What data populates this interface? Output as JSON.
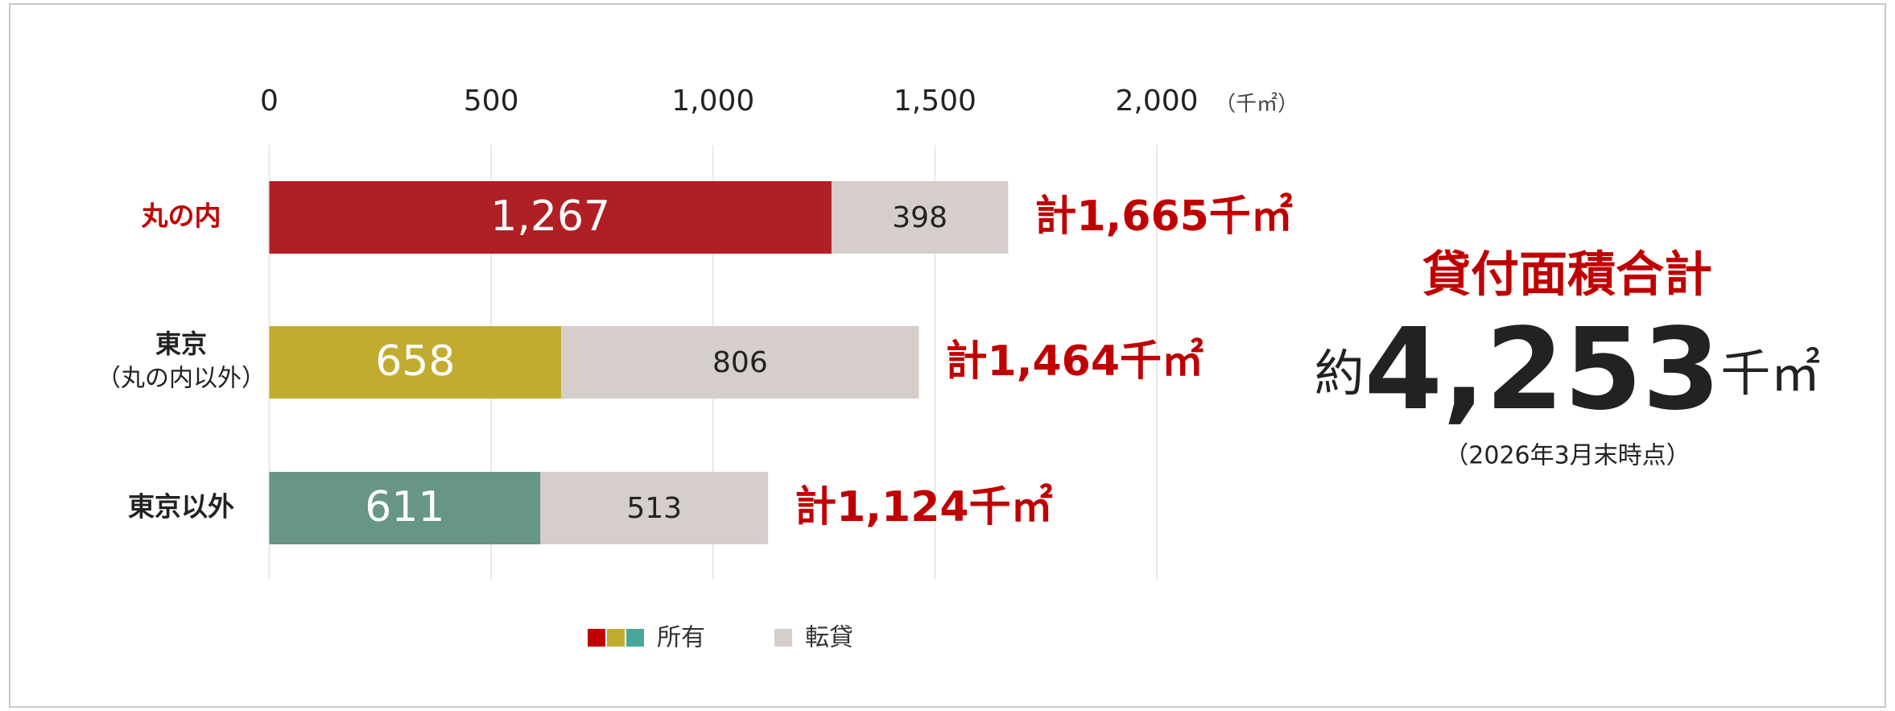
{
  "chart_data": {
    "type": "stacked-barh",
    "categories": [
      "丸の内",
      [
        "東京",
        "（丸の内以外）"
      ],
      "東京以外"
    ],
    "category_colors": [
      "#c00000",
      "#222222",
      "#222222"
    ],
    "series": [
      {
        "name": "所有",
        "colors": [
          "#b01f24",
          "#c2ac30",
          "#679586"
        ],
        "legend_colors": [
          "#c00000",
          "#c2ac30",
          "#4aa69a"
        ],
        "values": [
          1267,
          658,
          611
        ],
        "value_labels": [
          "1,267",
          "658",
          "611"
        ]
      },
      {
        "name": "転貸",
        "color": "#d6ceca",
        "values": [
          398,
          806,
          513
        ]
      }
    ],
    "totals": {
      "values": [
        1665,
        1464,
        1124
      ],
      "value_labels": [
        "計1,665千㎡",
        "計1,464千㎡",
        "計1,124千㎡"
      ],
      "color": "#c00000"
    },
    "xlim": [
      0,
      2000
    ],
    "xticks": [
      0,
      500,
      {
        "value": 1000,
        "label": "1,000"
      },
      {
        "value": 1500,
        "label": "1,500"
      },
      {
        "value": 2000,
        "label": "2,000"
      }
    ],
    "xlabel": "（千㎡）",
    "grid": true,
    "summary": {
      "title": "貸付面積合計",
      "prefix": "約",
      "value": 4253,
      "value_label": "4,253",
      "unit": "千㎡",
      "note": "（2026年3月末時点）"
    }
  }
}
